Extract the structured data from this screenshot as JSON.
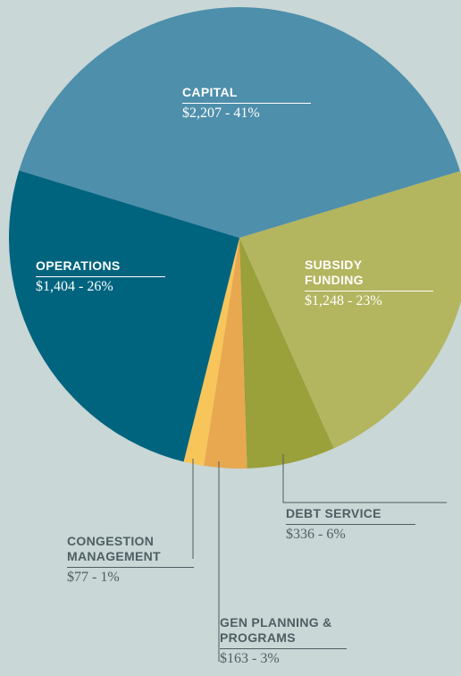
{
  "chart_data": {
    "type": "pie",
    "categories": [
      "CAPITAL",
      "SUBSIDY FUNDING",
      "DEBT SERVICE",
      "GEN PLANNING & PROGRAMS",
      "CONGESTION MANAGEMENT",
      "OPERATIONS"
    ],
    "values": [
      2207,
      1248,
      336,
      163,
      77,
      1404
    ],
    "value_labels": [
      "$2,207 - 41%",
      "$1,248 - 23%",
      "$336 - 6%",
      "$163 - 3%",
      "$77 - 1%",
      "$1,404 - 26%"
    ],
    "colors": [
      "#4e8fab",
      "#b3b55f",
      "#9aa03a",
      "#e8a850",
      "#f7c55a",
      "#00647f"
    ]
  }
}
